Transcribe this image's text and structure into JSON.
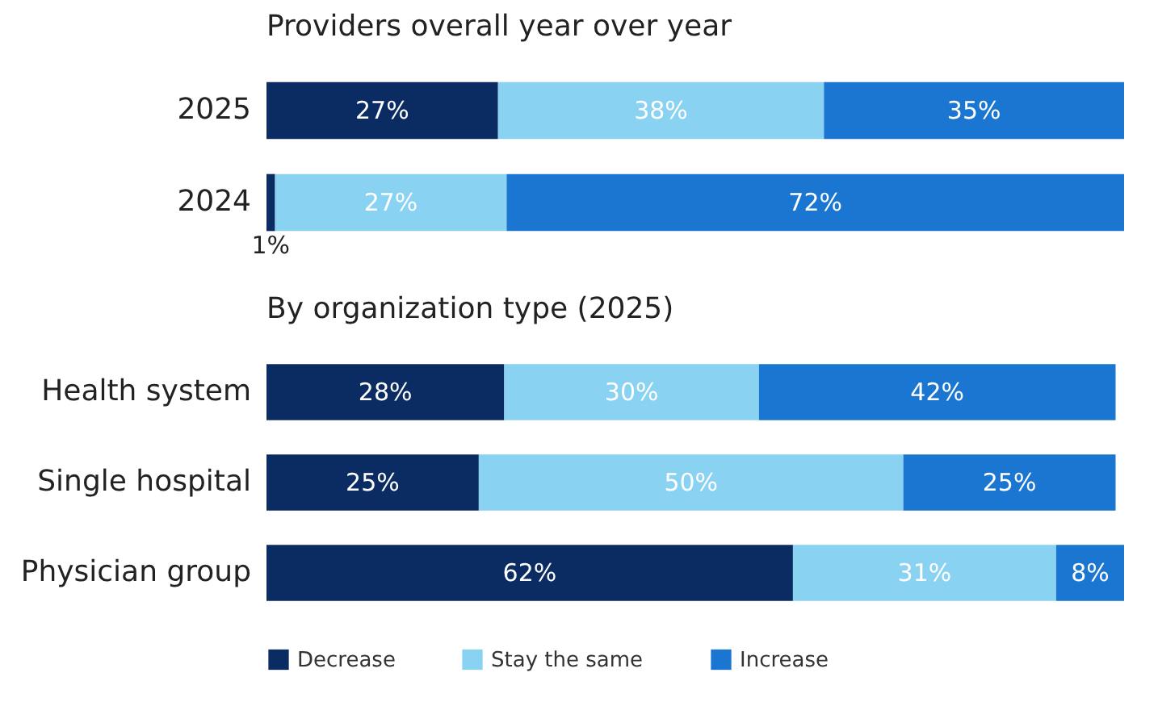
{
  "chart_data": [
    {
      "type": "bar",
      "title": "Providers overall year over year",
      "orientation": "horizontal",
      "stacked": true,
      "categories": [
        "2025",
        "2024"
      ],
      "tick_labels": "y",
      "legend": false,
      "series": [
        {
          "color": "#0b2b63",
          "values": [
            27,
            1
          ],
          "value_labels": [
            "27%",
            "1%"
          ]
        },
        {
          "color": "#89d2f1",
          "values": [
            38,
            27
          ],
          "value_labels": [
            "38%",
            "27%"
          ]
        },
        {
          "color": "#1a76d0",
          "values": [
            35,
            72
          ],
          "value_labels": [
            "35%",
            "72%"
          ]
        }
      ]
    },
    {
      "type": "bar",
      "title": "By organization type (2025)",
      "orientation": "horizontal",
      "stacked": true,
      "categories": [
        "Health system",
        "Single hospital",
        "Physician group"
      ],
      "tick_labels": "y",
      "legend": "bottom",
      "series": [
        {
          "name": "Decrease",
          "color": "#0b2b63",
          "values": [
            28,
            25,
            62
          ],
          "value_labels": [
            "28%",
            "25%",
            "62%"
          ]
        },
        {
          "name": "Stay the same",
          "color": "#89d2f1",
          "values": [
            30,
            50,
            31
          ],
          "value_labels": [
            "30%",
            "50%",
            "31%"
          ]
        },
        {
          "name": "Increase",
          "color": "#1a76d0",
          "values": [
            42,
            25,
            8
          ],
          "value_labels": [
            "42%",
            "25%",
            "8%"
          ]
        }
      ]
    }
  ]
}
